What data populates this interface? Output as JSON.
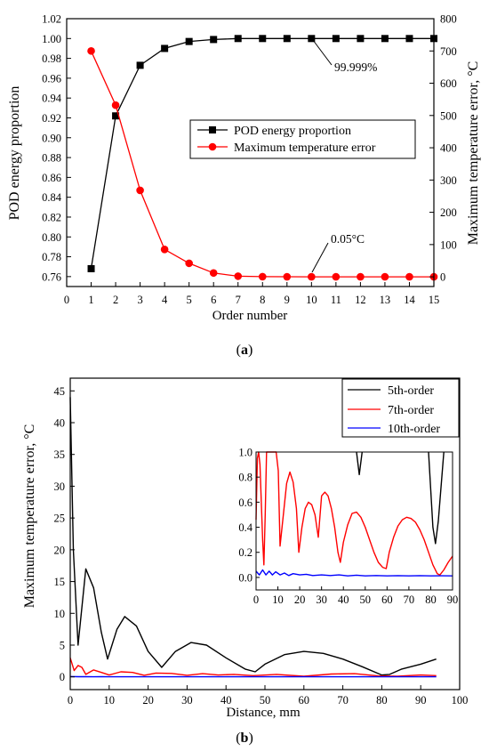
{
  "chart_data": [
    {
      "panel_label": "a",
      "type": "line",
      "xlabel": "Order number",
      "ylabel_left": "POD energy proportion",
      "ylabel_right": "Maximum temperature error, °C",
      "xlim": [
        0,
        15
      ],
      "ylim_left": [
        0.75,
        1.02
      ],
      "ylim_right": [
        -30,
        800
      ],
      "x_ticks": [
        0,
        1,
        2,
        3,
        4,
        5,
        6,
        7,
        8,
        9,
        10,
        11,
        12,
        13,
        14,
        15
      ],
      "y_ticks_left": [
        "0.76",
        "0.78",
        "0.80",
        "0.82",
        "0.84",
        "0.86",
        "0.88",
        "0.90",
        "0.92",
        "0.94",
        "0.96",
        "0.98",
        "1.00",
        "1.02"
      ],
      "y_ticks_right": [
        0,
        100,
        200,
        300,
        400,
        500,
        600,
        700,
        800
      ],
      "legend_position": "center-right",
      "series": [
        {
          "name": "POD energy proportion",
          "axis": "left",
          "color": "#000000",
          "marker": "square",
          "x": [
            1,
            2,
            3,
            4,
            5,
            6,
            7,
            8,
            9,
            10,
            11,
            12,
            13,
            14,
            15
          ],
          "y": [
            0.768,
            0.922,
            0.973,
            0.99,
            0.997,
            0.999,
            1.0,
            1.0,
            1.0,
            1.0,
            1.0,
            1.0,
            1.0,
            1.0,
            1.0
          ]
        },
        {
          "name": "Maximum temperature error",
          "axis": "right",
          "color": "#ff0000",
          "marker": "circle",
          "x": [
            1,
            2,
            3,
            4,
            5,
            6,
            7,
            8,
            9,
            10,
            11,
            12,
            13,
            14,
            15
          ],
          "y": [
            700,
            532,
            268,
            85,
            42,
            12,
            2,
            0.5,
            0.2,
            0.05,
            0.05,
            0.05,
            0.05,
            0.05,
            0.05
          ]
        }
      ],
      "annotations": [
        {
          "text": "99.999%",
          "x": 8,
          "axis": "left",
          "y": 1.0
        },
        {
          "text": "0.05°C",
          "x": 10,
          "axis": "right",
          "y": 0.05
        }
      ]
    },
    {
      "panel_label": "b",
      "type": "line",
      "xlabel": "Distance, mm",
      "ylabel": "Maximum  temperature error, °C",
      "xlim": [
        0,
        100
      ],
      "ylim": [
        -2,
        47
      ],
      "x_ticks": [
        0,
        10,
        20,
        30,
        40,
        50,
        60,
        70,
        80,
        90,
        100
      ],
      "y_ticks": [
        0,
        5,
        10,
        15,
        20,
        25,
        30,
        35,
        40,
        45
      ],
      "legend_position": "top-right",
      "series": [
        {
          "name": "5th-order",
          "color": "#000000",
          "x": [
            0,
            0.8,
            2,
            4,
            6,
            8,
            9.6,
            12,
            14,
            17,
            20,
            23.5,
            27,
            31,
            35,
            40,
            45,
            47.5,
            50,
            55,
            60,
            65,
            70,
            75,
            80,
            82,
            85,
            90,
            94
          ],
          "y": [
            44,
            20,
            5,
            17,
            14,
            7,
            2.8,
            7.5,
            9.5,
            8,
            4,
            1.5,
            4,
            5.4,
            5,
            3,
            1.2,
            0.8,
            2,
            3.5,
            4.0,
            3.7,
            2.8,
            1.6,
            0.3,
            0.4,
            1.2,
            2.0,
            2.8
          ]
        },
        {
          "name": "7th-order",
          "color": "#ff0000",
          "x": [
            0,
            1,
            2,
            3,
            4,
            6,
            8,
            10,
            13,
            16,
            19,
            22,
            26,
            30,
            34,
            38,
            42,
            47,
            53,
            60,
            67,
            73,
            79,
            84,
            90,
            94
          ],
          "y": [
            3,
            1,
            1.8,
            1.5,
            0.4,
            1.1,
            0.7,
            0.3,
            0.8,
            0.7,
            0.25,
            0.6,
            0.55,
            0.25,
            0.5,
            0.3,
            0.4,
            0.2,
            0.4,
            0.1,
            0.45,
            0.5,
            0.15,
            0.1,
            0.3,
            0.2
          ]
        },
        {
          "name": "10th-order",
          "color": "#0000ff",
          "x": [
            0,
            2,
            4,
            6,
            8,
            10,
            15,
            20,
            25,
            30,
            40,
            50,
            60,
            70,
            80,
            90,
            94
          ],
          "y": [
            0.06,
            0.03,
            0.05,
            0.02,
            0.04,
            0.02,
            0.02,
            0.01,
            0.02,
            0.01,
            0.01,
            0.01,
            0.01,
            0.01,
            0.01,
            0.01,
            0.01
          ]
        }
      ],
      "inset": {
        "xlim": [
          0,
          90
        ],
        "ylim": [
          -0.1,
          1.0
        ],
        "x_ticks": [
          0,
          10,
          20,
          30,
          40,
          50,
          60,
          70,
          80,
          90
        ],
        "y_ticks": [
          "0.0",
          "0.2",
          "0.4",
          "0.6",
          "0.8",
          "1.0"
        ],
        "series": [
          {
            "name": "5th-order",
            "color": "#000000",
            "segments": [
              {
                "x": [
                  46,
                  47.3,
                  48.6
                ],
                "y": [
                  1.0,
                  0.82,
                  1.0
                ]
              },
              {
                "x": [
                  79,
                  81,
                  82.2,
                  83.5,
                  86
                ],
                "y": [
                  1.0,
                  0.4,
                  0.27,
                  0.45,
                  1.0
                ]
              }
            ]
          },
          {
            "name": "7th-order",
            "color": "#ff0000",
            "x": [
              0,
              0.6,
              1.2,
              1.8,
              2.4,
              3,
              3.6,
              4.2,
              4.8,
              5.6,
              6.5,
              7.2,
              8.2,
              9.2,
              10.2,
              11,
              12.5,
              14,
              15.5,
              17,
              18.5,
              19.6,
              21,
              22.5,
              24,
              25.5,
              27,
              28.5,
              30,
              31.5,
              33,
              34.5,
              36,
              37.5,
              38.6,
              40,
              42,
              44,
              46,
              48,
              50,
              52,
              54,
              56,
              58,
              59.6,
              61,
              63,
              65,
              67,
              69,
              71,
              73,
              75,
              77,
              79,
              81,
              83,
              84.2,
              86,
              88,
              90
            ],
            "y": [
              0.46,
              0.95,
              1.0,
              0.9,
              0.6,
              0.3,
              0.1,
              0.5,
              1.0,
              1.0,
              1.0,
              1.0,
              1.0,
              1.0,
              0.85,
              0.25,
              0.5,
              0.75,
              0.84,
              0.76,
              0.55,
              0.2,
              0.4,
              0.55,
              0.6,
              0.58,
              0.5,
              0.32,
              0.65,
              0.68,
              0.65,
              0.55,
              0.4,
              0.2,
              0.12,
              0.28,
              0.42,
              0.51,
              0.52,
              0.48,
              0.4,
              0.3,
              0.2,
              0.12,
              0.08,
              0.07,
              0.2,
              0.32,
              0.41,
              0.46,
              0.48,
              0.47,
              0.44,
              0.38,
              0.3,
              0.2,
              0.1,
              0.03,
              0.02,
              0.06,
              0.12,
              0.17
            ]
          },
          {
            "name": "10th-order",
            "color": "#0000ff",
            "x": [
              0,
              1.5,
              3,
              4.5,
              6,
              7.5,
              9,
              11,
              13,
              15,
              17,
              20,
              23,
              26,
              30,
              34,
              38,
              42,
              46,
              50,
              55,
              60,
              65,
              70,
              75,
              80,
              85,
              90
            ],
            "y": [
              0.05,
              0.02,
              0.06,
              0.02,
              0.05,
              0.02,
              0.045,
              0.02,
              0.035,
              0.015,
              0.03,
              0.02,
              0.025,
              0.015,
              0.02,
              0.015,
              0.02,
              0.012,
              0.018,
              0.012,
              0.015,
              0.012,
              0.014,
              0.012,
              0.014,
              0.012,
              0.013,
              0.012
            ]
          }
        ]
      }
    }
  ]
}
